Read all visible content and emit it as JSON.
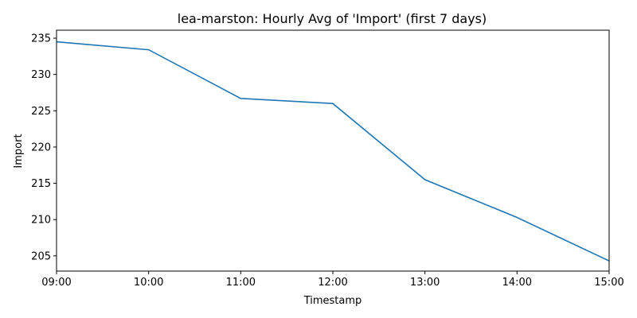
{
  "chart_data": {
    "type": "line",
    "title": "lea-marston: Hourly Avg of 'Import' (first 7 days)",
    "xlabel": "Timestamp",
    "ylabel": "Import",
    "x": [
      "09:00",
      "10:00",
      "11:00",
      "12:00",
      "13:00",
      "14:00",
      "15:00"
    ],
    "series": [
      {
        "values": [
          234.5,
          233.4,
          226.7,
          226.0,
          215.5,
          210.3,
          204.3
        ]
      }
    ],
    "ylim": [
      202.9,
      236.1
    ],
    "yticks": [
      205,
      210,
      215,
      220,
      225,
      230,
      235
    ],
    "grid": false,
    "colors": {
      "line": "#1f77b4",
      "axes": "#000000"
    }
  }
}
